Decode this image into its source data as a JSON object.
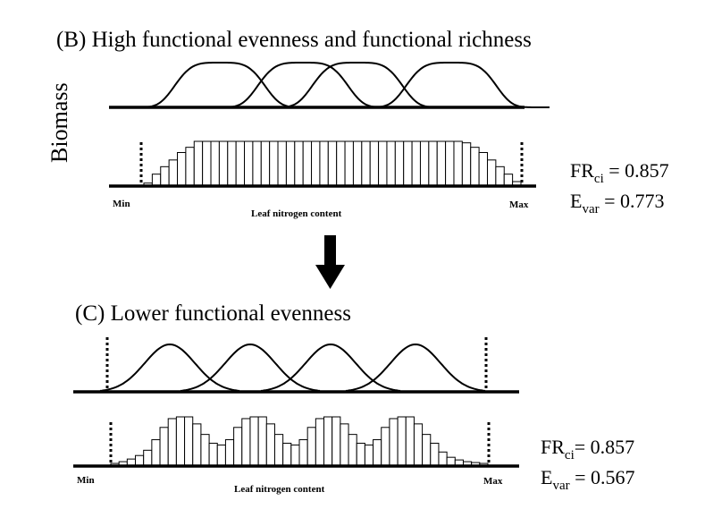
{
  "panel_b": {
    "title": "(B) High functional evenness and functional richness",
    "ylabel": "Biomass",
    "xlabel": "Leaf nitrogen content",
    "x_min_label": "Min",
    "x_max_label": "Max",
    "stats": {
      "fr_main": "FR",
      "fr_sub": "ci",
      "fr_value": " = 0.857",
      "e_main": "E",
      "e_sub": "var",
      "e_value": "  = 0.773"
    },
    "histogram": [
      4,
      16,
      26,
      35,
      45,
      52,
      60,
      60,
      60,
      60,
      60,
      60,
      60,
      60,
      60,
      60,
      60,
      60,
      60,
      60,
      60,
      60,
      60,
      60,
      60,
      60,
      60,
      60,
      60,
      60,
      60,
      60,
      60,
      60,
      60,
      60,
      60,
      60,
      58,
      52,
      45,
      35,
      26,
      16,
      6
    ]
  },
  "panel_c": {
    "title": "(C) Lower functional evenness",
    "xlabel": "Leaf nitrogen content",
    "x_min_label": "Min",
    "x_max_label": "Max",
    "stats": {
      "fr_main": "FR",
      "fr_sub": "ci",
      "fr_value": "= 0.857",
      "e_main": "E",
      "e_sub": "var",
      "e_value": "  = 0.567"
    },
    "histogram": [
      3,
      5,
      8,
      12,
      18,
      30,
      44,
      54,
      56,
      56,
      48,
      36,
      26,
      24,
      30,
      44,
      54,
      56,
      56,
      48,
      36,
      26,
      24,
      30,
      44,
      54,
      56,
      56,
      48,
      36,
      26,
      24,
      30,
      44,
      54,
      56,
      56,
      48,
      36,
      26,
      16,
      10,
      7,
      5,
      4,
      3
    ]
  }
}
